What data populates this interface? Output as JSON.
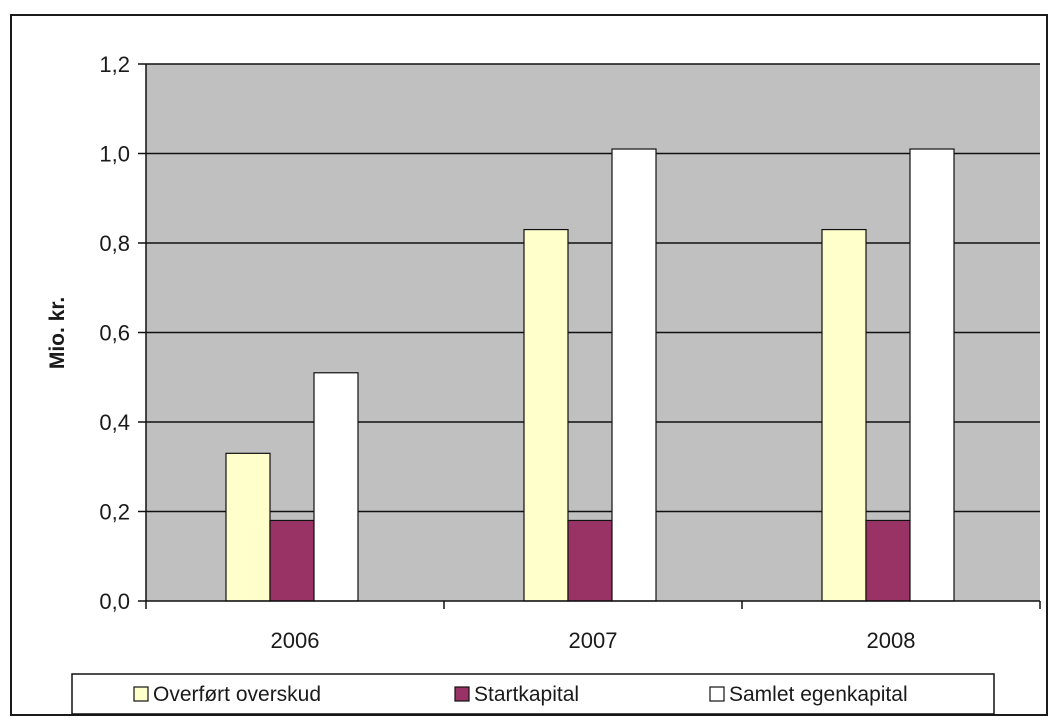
{
  "chart_data": {
    "type": "bar",
    "title": "",
    "xlabel": "",
    "ylabel": "Mio. kr.",
    "categories": [
      "2006",
      "2007",
      "2008"
    ],
    "ylim": [
      0,
      1.2
    ],
    "yticks": [
      "0,0",
      "0,2",
      "0,4",
      "0,6",
      "0,8",
      "1,0",
      "1,2"
    ],
    "grid": true,
    "legend_position": "bottom",
    "series": [
      {
        "name": "Overført overskud",
        "values": [
          0.33,
          0.83,
          0.83
        ],
        "color": "#ffffcc"
      },
      {
        "name": "Startkapital",
        "values": [
          0.18,
          0.18,
          0.18
        ],
        "color": "#993366"
      },
      {
        "name": "Samlet egenkapital",
        "values": [
          0.51,
          1.01,
          1.01
        ],
        "color": "#ffffff"
      }
    ],
    "plot_background": "#c0c0c0"
  }
}
